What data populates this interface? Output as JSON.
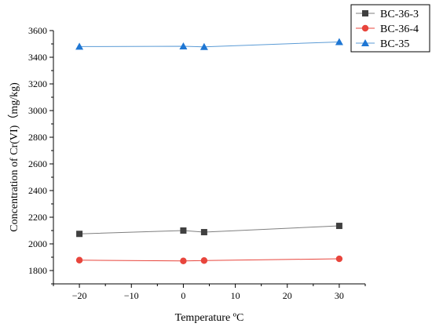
{
  "chart_data": {
    "type": "line",
    "xlabel": "Temperature ºC",
    "ylabel": "Concentration of Cr(VI)（mg/kg)",
    "xlim": [
      -25,
      35
    ],
    "ylim": [
      1700,
      3600
    ],
    "xticks": [
      -20,
      -10,
      0,
      10,
      20,
      30
    ],
    "yticks": [
      1800,
      2000,
      2200,
      2400,
      2600,
      2800,
      3000,
      3200,
      3400,
      3600
    ],
    "legend_position": "top-right",
    "x": [
      -20,
      0,
      4,
      30
    ],
    "series": [
      {
        "name": "BC-36-3",
        "marker": "square",
        "color": "#404040",
        "line_color": "#7f7f7f",
        "values": [
          2075,
          2100,
          2088,
          2135
        ]
      },
      {
        "name": "BC-36-4",
        "marker": "circle",
        "color": "#e8453c",
        "line_color": "#e8453c",
        "values": [
          1878,
          1872,
          1875,
          1888
        ]
      },
      {
        "name": "BC-35",
        "marker": "triangle",
        "color": "#1f77d4",
        "line_color": "#5b9bd5",
        "values": [
          3480,
          3482,
          3478,
          3515
        ]
      }
    ]
  }
}
